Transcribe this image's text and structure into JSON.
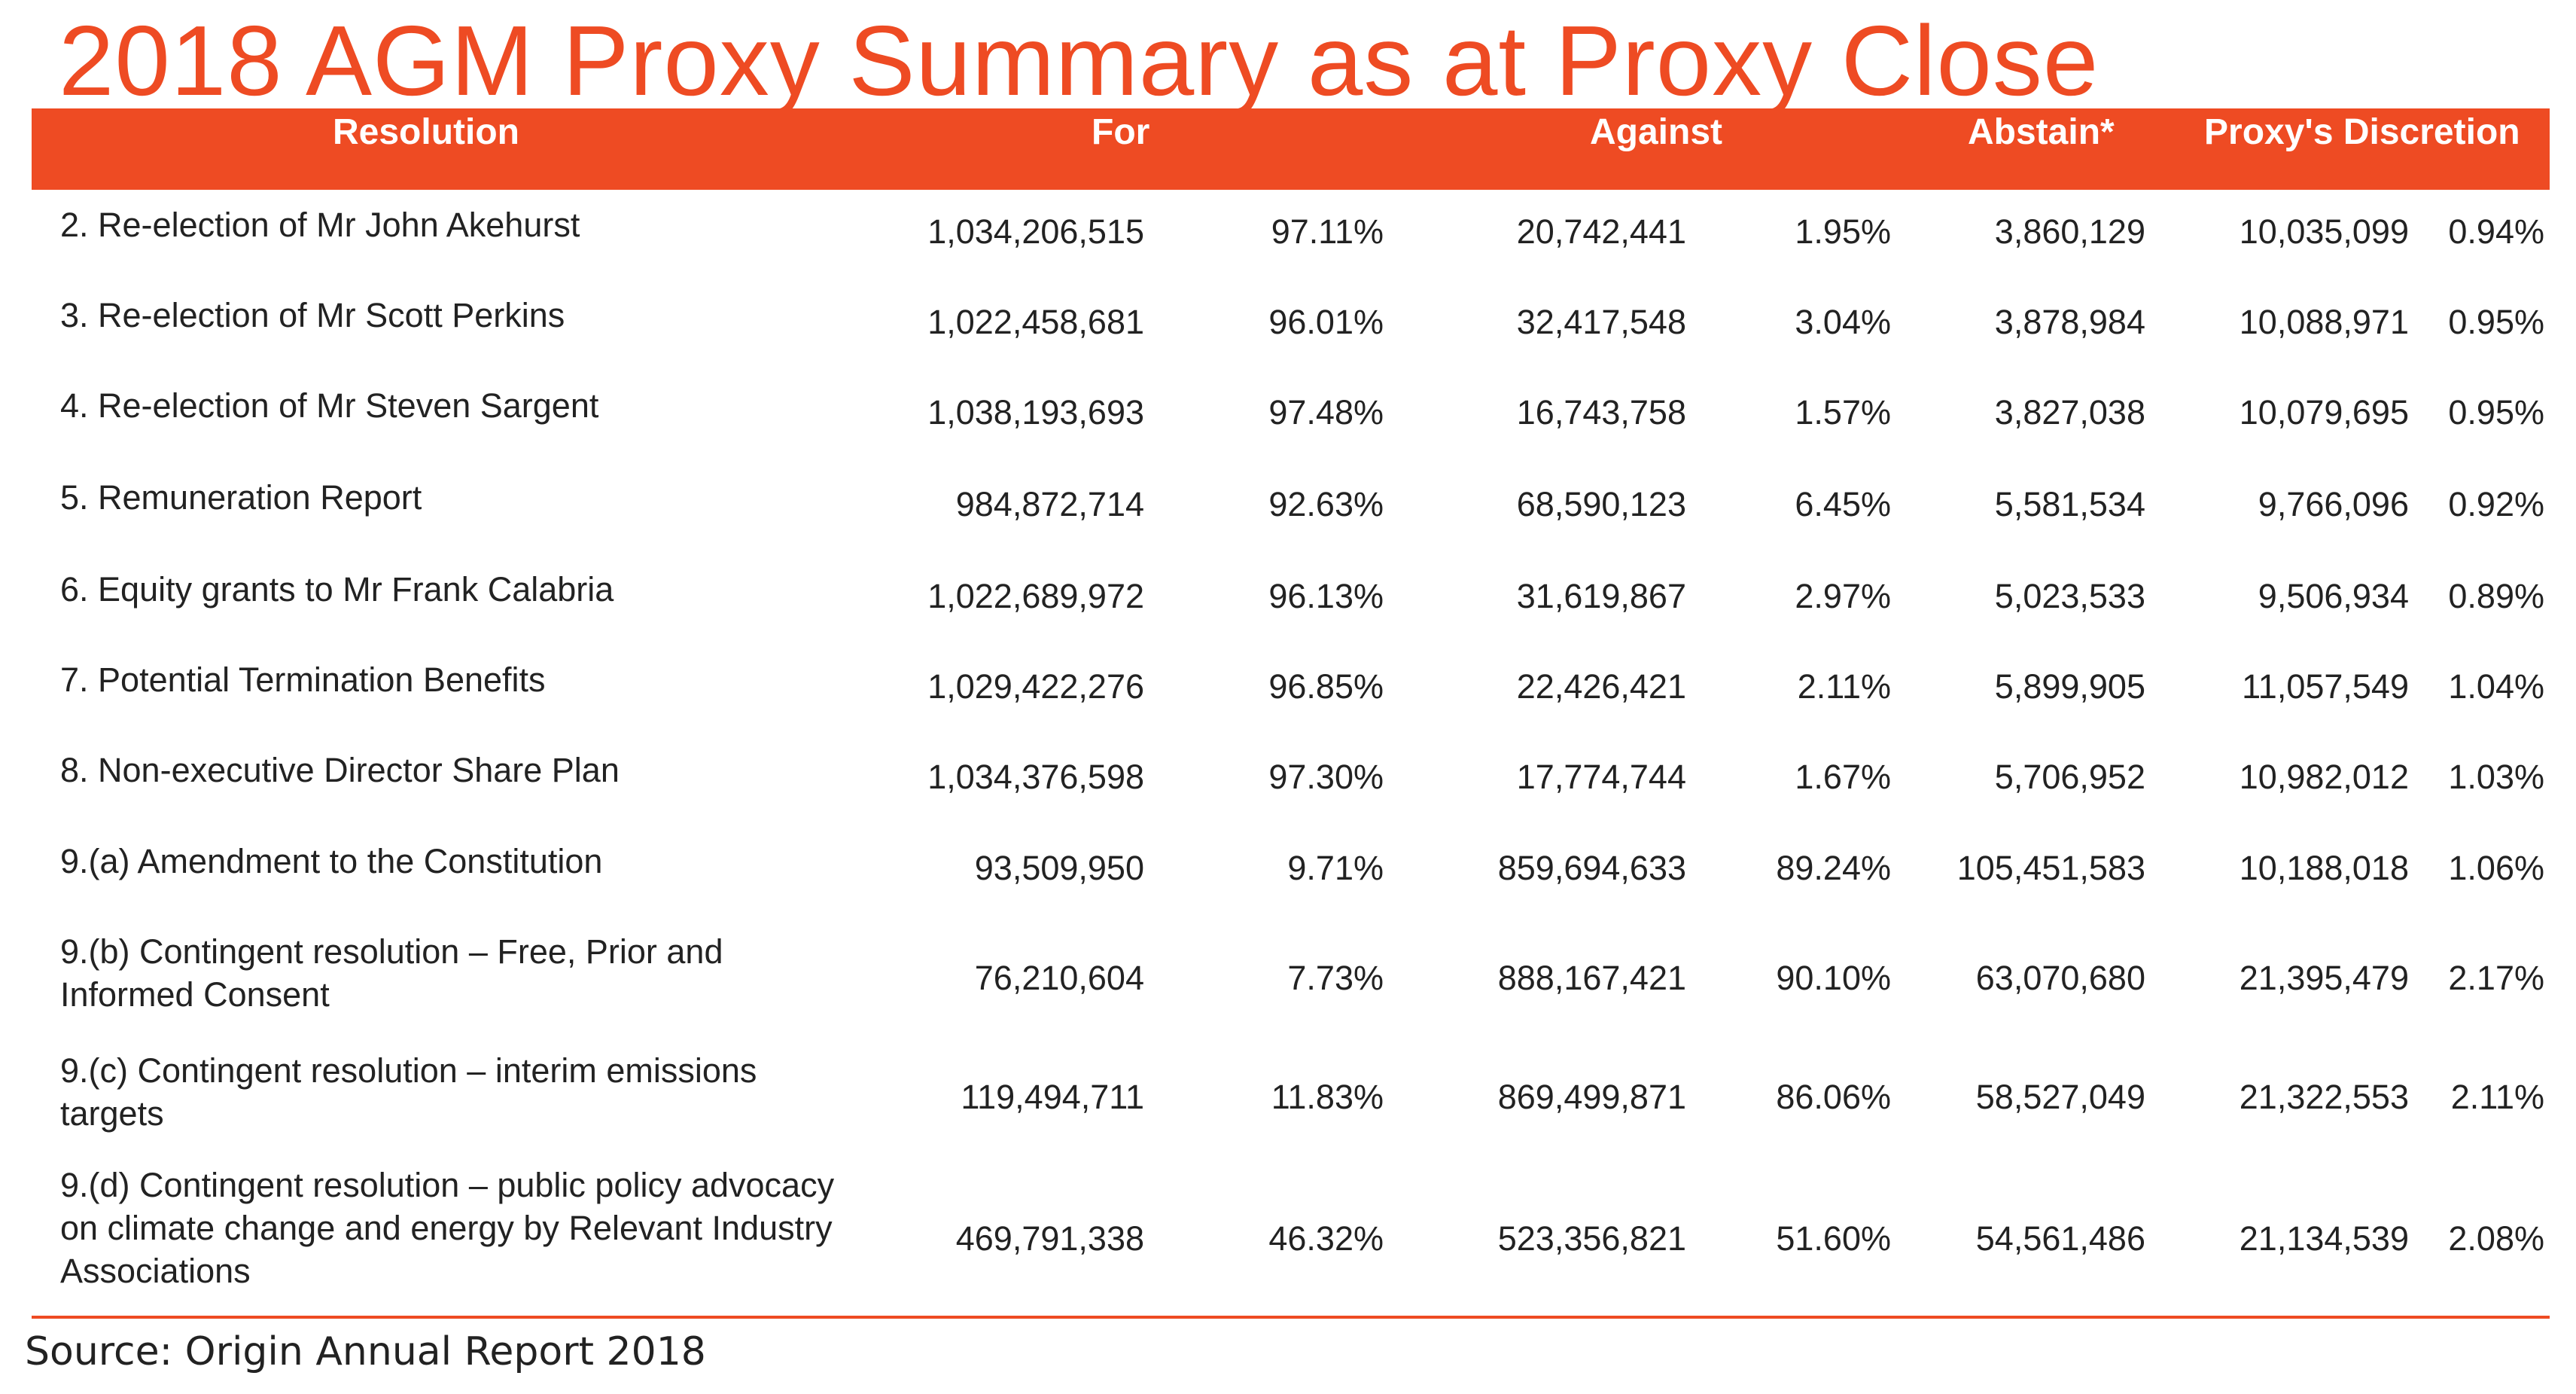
{
  "title": "2018 AGM Proxy Summary as at Proxy Close",
  "colors": {
    "accent": "#ee4b23",
    "header_text": "#ffffff",
    "body_text": "#222222"
  },
  "table": {
    "headers": {
      "resolution": "Resolution",
      "for": "For",
      "against": "Against",
      "abstain": "Abstain*",
      "discretion": "Proxy's Discretion"
    },
    "rows": [
      {
        "resolution": "2. Re-election of Mr John Akehurst",
        "for_count": "1,034,206,515",
        "for_pct": "97.11%",
        "against_count": "20,742,441",
        "against_pct": "1.95%",
        "abstain": "3,860,129",
        "discretion_count": "10,035,099",
        "discretion_pct": "0.94%"
      },
      {
        "resolution": "3. Re-election of Mr Scott Perkins",
        "for_count": "1,022,458,681",
        "for_pct": "96.01%",
        "against_count": "32,417,548",
        "against_pct": "3.04%",
        "abstain": "3,878,984",
        "discretion_count": "10,088,971",
        "discretion_pct": "0.95%"
      },
      {
        "resolution": "4. Re-election of Mr Steven Sargent",
        "for_count": "1,038,193,693",
        "for_pct": "97.48%",
        "against_count": "16,743,758",
        "against_pct": "1.57%",
        "abstain": "3,827,038",
        "discretion_count": "10,079,695",
        "discretion_pct": "0.95%"
      },
      {
        "resolution": "5. Remuneration Report",
        "for_count": "984,872,714",
        "for_pct": "92.63%",
        "against_count": "68,590,123",
        "against_pct": "6.45%",
        "abstain": "5,581,534",
        "discretion_count": "9,766,096",
        "discretion_pct": "0.92%"
      },
      {
        "resolution": "6. Equity grants to Mr Frank Calabria",
        "for_count": "1,022,689,972",
        "for_pct": "96.13%",
        "against_count": "31,619,867",
        "against_pct": "2.97%",
        "abstain": "5,023,533",
        "discretion_count": "9,506,934",
        "discretion_pct": "0.89%"
      },
      {
        "resolution": "7. Potential Termination Benefits",
        "for_count": "1,029,422,276",
        "for_pct": "96.85%",
        "against_count": "22,426,421",
        "against_pct": "2.11%",
        "abstain": "5,899,905",
        "discretion_count": "11,057,549",
        "discretion_pct": "1.04%"
      },
      {
        "resolution": "8. Non-executive Director Share Plan",
        "for_count": "1,034,376,598",
        "for_pct": "97.30%",
        "against_count": "17,774,744",
        "against_pct": "1.67%",
        "abstain": "5,706,952",
        "discretion_count": "10,982,012",
        "discretion_pct": "1.03%"
      },
      {
        "resolution": "9.(a) Amendment to the Constitution",
        "for_count": "93,509,950",
        "for_pct": "9.71%",
        "against_count": "859,694,633",
        "against_pct": "89.24%",
        "abstain": "105,451,583",
        "discretion_count": "10,188,018",
        "discretion_pct": "1.06%"
      },
      {
        "resolution": "9.(b) Contingent resolution – Free, Prior and Informed Consent",
        "for_count": "76,210,604",
        "for_pct": "7.73%",
        "against_count": "888,167,421",
        "against_pct": "90.10%",
        "abstain": "63,070,680",
        "discretion_count": "21,395,479",
        "discretion_pct": "2.17%"
      },
      {
        "resolution": "9.(c) Contingent resolution – interim emissions targets",
        "for_count": "119,494,711",
        "for_pct": "11.83%",
        "against_count": "869,499,871",
        "against_pct": "86.06%",
        "abstain": "58,527,049",
        "discretion_count": "21,322,553",
        "discretion_pct": "2.11%"
      },
      {
        "resolution": "9.(d) Contingent resolution – public policy advocacy on climate change and energy by Relevant Industry Associations",
        "for_count": "469,791,338",
        "for_pct": "46.32%",
        "against_count": "523,356,821",
        "against_pct": "51.60%",
        "abstain": "54,561,486",
        "discretion_count": "21,134,539",
        "discretion_pct": "2.08%"
      }
    ]
  },
  "source": "Source: Origin Annual Report 2018"
}
